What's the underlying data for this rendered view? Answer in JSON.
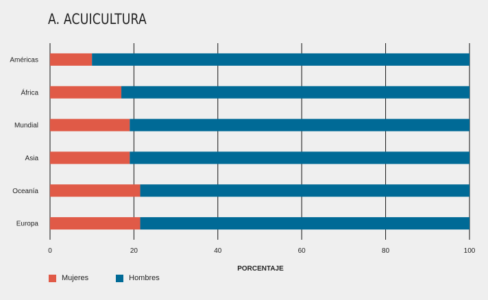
{
  "chart_data": {
    "type": "bar",
    "stacked": true,
    "orientation": "horizontal",
    "title": "A. ACUICULTURA",
    "xlabel": "PORCENTAJE",
    "ylabel": "",
    "xlim": [
      0,
      100
    ],
    "xticks": [
      "0",
      "20",
      "40",
      "60",
      "80",
      "100"
    ],
    "grid": true,
    "categories": [
      "Américas",
      "África",
      "Mundial",
      "Asia",
      "Oceanía",
      "Europa"
    ],
    "series": [
      {
        "name": "Mujeres",
        "color": "#e05a47",
        "values": [
          10,
          17,
          19,
          19,
          21.5,
          21.5
        ]
      },
      {
        "name": "Hombres",
        "color": "#006a96",
        "values": [
          90,
          83,
          81,
          81,
          78.5,
          78.5
        ]
      }
    ],
    "legend_position": "bottom-left"
  }
}
